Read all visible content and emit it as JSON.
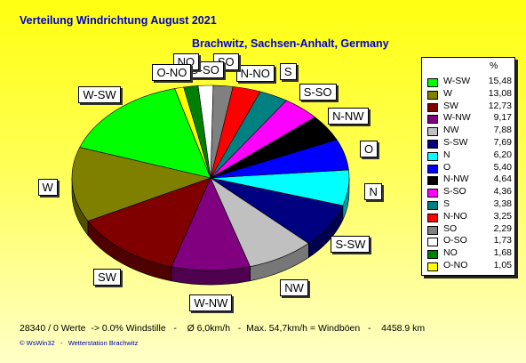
{
  "header": {
    "title": "Verteilung Windrichtung    August 2021",
    "subtitle": "Brachwitz, Sachsen-Anhalt, Germany"
  },
  "legend": {
    "unit": "%"
  },
  "chart_data": {
    "type": "pie",
    "title": "Verteilung Windrichtung    August 2021",
    "subtitle": "Brachwitz, Sachsen-Anhalt, Germany",
    "legend_position": "right",
    "slices": [
      {
        "label": "W-SW",
        "display": "15,48",
        "value": 15.48,
        "color": "#00ff00"
      },
      {
        "label": "W",
        "display": "13,08",
        "value": 13.08,
        "color": "#808000"
      },
      {
        "label": "SW",
        "display": "12,73",
        "value": 12.73,
        "color": "#800000"
      },
      {
        "label": "W-NW",
        "display": "9,17",
        "value": 9.17,
        "color": "#800080"
      },
      {
        "label": "NW",
        "display": "7,88",
        "value": 7.88,
        "color": "#c0c0c0"
      },
      {
        "label": "S-SW",
        "display": "7,69",
        "value": 7.69,
        "color": "#000080"
      },
      {
        "label": "N",
        "display": "6,20",
        "value": 6.2,
        "color": "#00ffff"
      },
      {
        "label": "O",
        "display": "5,40",
        "value": 5.4,
        "color": "#0000ff"
      },
      {
        "label": "N-NW",
        "display": "4,64",
        "value": 4.64,
        "color": "#000000"
      },
      {
        "label": "S-SO",
        "display": "4,36",
        "value": 4.36,
        "color": "#ff00ff"
      },
      {
        "label": "S",
        "display": "3,38",
        "value": 3.38,
        "color": "#008080"
      },
      {
        "label": "N-NO",
        "display": "3,25",
        "value": 3.25,
        "color": "#ff0000"
      },
      {
        "label": "SO",
        "display": "2,29",
        "value": 2.29,
        "color": "#808080"
      },
      {
        "label": "O-SO",
        "display": "1,73",
        "value": 1.73,
        "color": "#ffffff"
      },
      {
        "label": "NO",
        "display": "1,68",
        "value": 1.68,
        "color": "#008000"
      },
      {
        "label": "O-NO",
        "display": "1,05",
        "value": 1.05,
        "color": "#ffff00"
      }
    ]
  },
  "footer": {
    "stats": "28340 / 0 Werte  -> 0.0% Windstille   -    Ø 6,0km/h   -  Max. 54,7km/h = Windböen   -    4458.9 km",
    "credit": "© WsWin32   -   Wetterstation Brachwitz"
  }
}
